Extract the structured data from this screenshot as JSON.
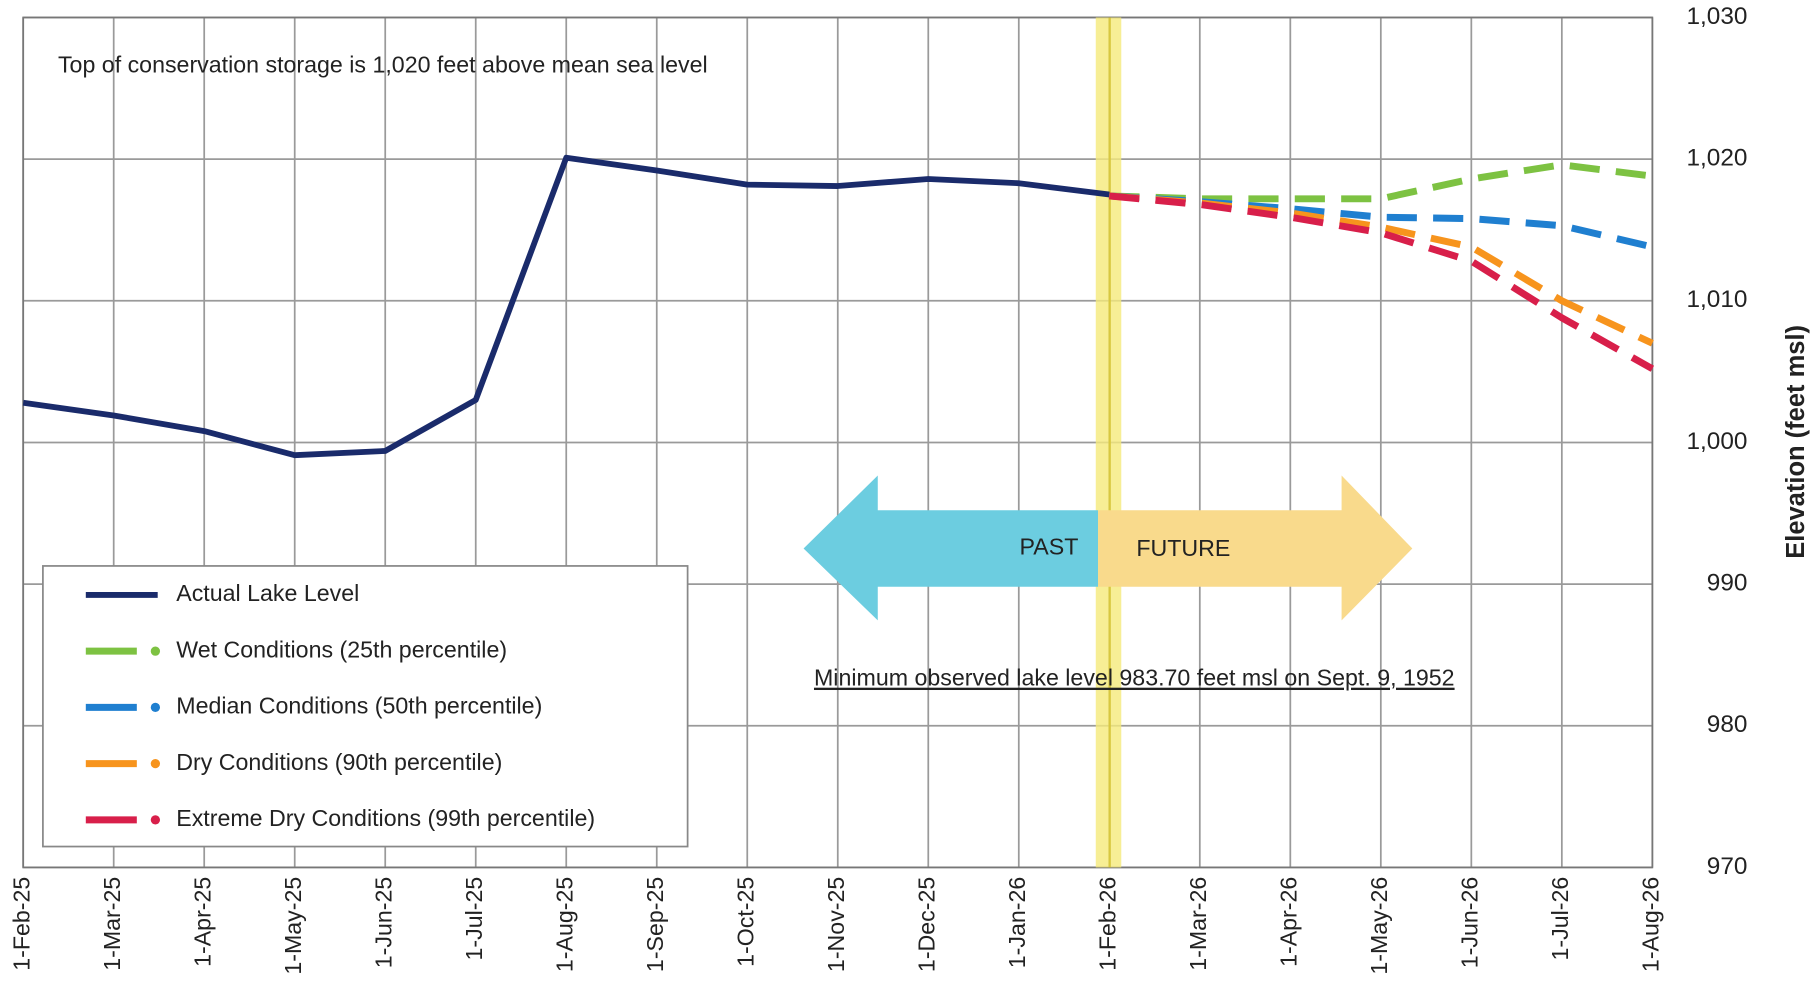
{
  "chart_data": {
    "type": "line",
    "title": "Top of conservation storage is 1,020 feet above mean sea level",
    "y_axis_label": "Elevation (feet msl)",
    "annotations": {
      "minimum": "Minimum observed lake level 983.70 feet msl on Sept. 9, 1952",
      "past": "PAST",
      "future": "FUTURE"
    },
    "categories": [
      "1-Feb-25",
      "1-Mar-25",
      "1-Apr-25",
      "1-May-25",
      "1-Jun-25",
      "1-Jul-25",
      "1-Aug-25",
      "1-Sep-25",
      "1-Oct-25",
      "1-Nov-25",
      "1-Dec-25",
      "1-Jan-26",
      "1-Feb-26",
      "1-Mar-26",
      "1-Apr-26",
      "1-May-26",
      "1-Jun-26",
      "1-Jul-26",
      "1-Aug-26"
    ],
    "series": [
      {
        "name": "Actual Lake Level",
        "color": "#1a2b6b",
        "dashed": false,
        "values": [
          1002.8,
          1001.9,
          1000.8,
          999.1,
          999.4,
          1003,
          1020.1,
          1019.2,
          1018.2,
          1018.1,
          1018.6,
          1018.3,
          1017.5,
          null,
          null,
          null,
          null,
          null,
          null
        ]
      },
      {
        "name": "Wet Conditions (25th percentile)",
        "color": "#7dc242",
        "dashed": true,
        "values": [
          null,
          null,
          null,
          null,
          null,
          null,
          null,
          null,
          null,
          null,
          null,
          null,
          1017.4,
          1017.2,
          1017.2,
          1017.2,
          1018.6,
          1019.6,
          1018.8
        ]
      },
      {
        "name": "Median Conditions (50th percentile)",
        "color": "#1f7fd0",
        "dashed": true,
        "values": [
          null,
          null,
          null,
          null,
          null,
          null,
          null,
          null,
          null,
          null,
          null,
          null,
          1017.4,
          1017.0,
          1016.5,
          1015.9,
          1015.8,
          1015.3,
          1013.8
        ]
      },
      {
        "name": "Dry Conditions (90th percentile)",
        "color": "#f7941d",
        "dashed": true,
        "values": [
          null,
          null,
          null,
          null,
          null,
          null,
          null,
          null,
          null,
          null,
          null,
          null,
          1017.4,
          1016.9,
          1016.2,
          1015.2,
          1013.8,
          1010.0,
          1007.0
        ]
      },
      {
        "name": "Extreme Dry Conditions (99th percentile)",
        "color": "#d81f4a",
        "dashed": true,
        "values": [
          null,
          null,
          null,
          null,
          null,
          null,
          null,
          null,
          null,
          null,
          null,
          null,
          1017.4,
          1016.8,
          1015.9,
          1014.8,
          1012.8,
          1008.8,
          1005.2
        ]
      }
    ],
    "ylim": [
      970,
      1030
    ],
    "yticks": [
      970,
      980,
      990,
      {
        "value": 1000,
        "label": "1,000"
      },
      {
        "value": 1010,
        "label": "1,010"
      },
      {
        "value": 1020,
        "label": "1,020"
      },
      {
        "value": 1030,
        "label": "1,030"
      }
    ],
    "grid": true,
    "legend": "lower left"
  }
}
